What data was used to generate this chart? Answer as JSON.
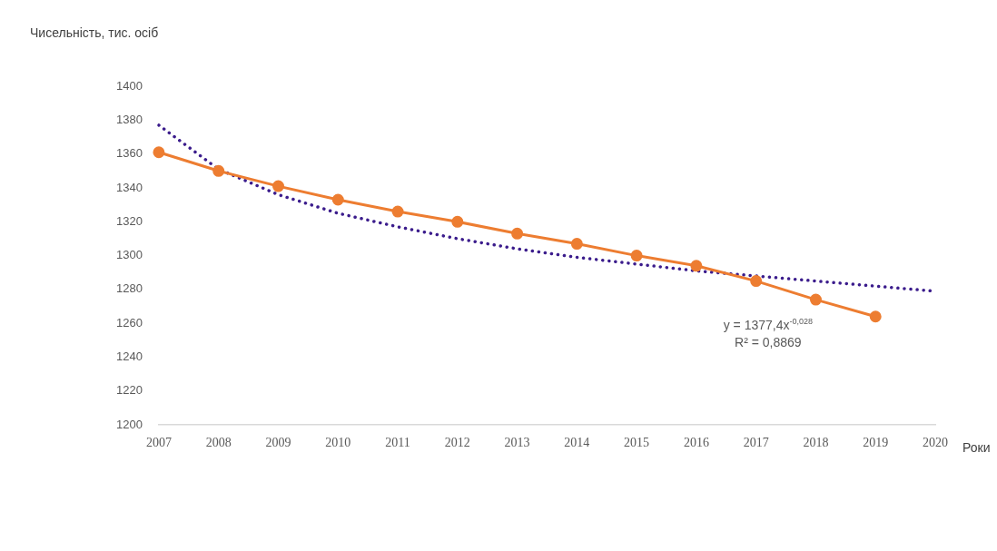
{
  "chart_data": {
    "type": "line",
    "ylabel": "Чисельність, тис. осіб",
    "xlabel": "Роки",
    "categories": [
      "2007",
      "2008",
      "2009",
      "2010",
      "2011",
      "2012",
      "2013",
      "2014",
      "2015",
      "2016",
      "2017",
      "2018",
      "2019",
      "2020"
    ],
    "series": [
      {
        "color": "#ed7d31",
        "values": [
          1361,
          1350,
          1341,
          1333,
          1326,
          1320,
          1313,
          1307,
          1300,
          1294,
          1285,
          1274,
          1264,
          null
        ],
        "marker": "circle",
        "line_style": "solid"
      },
      {
        "type": "line",
        "color": "#3b1c8c",
        "values": [
          1377,
          1351,
          1336,
          1325,
          1317,
          1310,
          1304,
          1299,
          1295,
          1291,
          1288,
          1285,
          1282,
          1279
        ],
        "marker": "none",
        "line_style": "dotted"
      }
    ],
    "ylim": [
      1200,
      1400
    ],
    "yticks": [
      1200,
      1220,
      1240,
      1260,
      1280,
      1300,
      1320,
      1340,
      1360,
      1380,
      1400
    ],
    "grid": false,
    "legend": false,
    "annotations": [
      "y = 1377,4x$^{-0,028}$",
      "R² = 0,8869"
    ]
  }
}
